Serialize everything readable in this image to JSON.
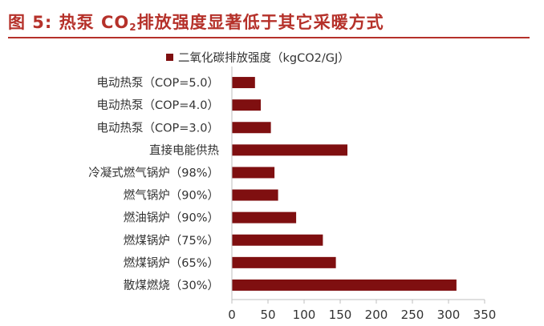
{
  "header": {
    "figure_label": "图 5:",
    "title_pre": "热泵 CO",
    "title_sub": "2",
    "title_post": "排放强度显著低于其它采暖方式"
  },
  "colors": {
    "bar": "#7f0f10",
    "title": "#b5312a",
    "axis": "#bfbfbf"
  },
  "chart_data": {
    "type": "bar",
    "orientation": "horizontal",
    "title": "",
    "xlabel": "",
    "ylabel": "",
    "legend": {
      "position": "top",
      "entries": [
        "二氧化碳排放强度（kgCO2/GJ）"
      ]
    },
    "xlim": [
      0,
      350
    ],
    "xticks": [
      0,
      50,
      100,
      150,
      200,
      250,
      300,
      350
    ],
    "grid": false,
    "categories": [
      "电动热泵（COP=5.0）",
      "电动热泵（COP=4.0）",
      "电动热泵（COP=3.0）",
      "直接电能供热",
      "冷凝式燃气锅炉（98%）",
      "燃气锅炉（90%）",
      "燃油锅炉（90%）",
      "燃煤锅炉（75%）",
      "燃煤锅炉（65%）",
      "散煤燃烧（30%）"
    ],
    "series": [
      {
        "name": "二氧化碳排放强度（kgCO2/GJ）",
        "values": [
          32,
          40,
          54,
          160,
          59,
          64,
          89,
          126,
          144,
          311
        ]
      }
    ]
  }
}
